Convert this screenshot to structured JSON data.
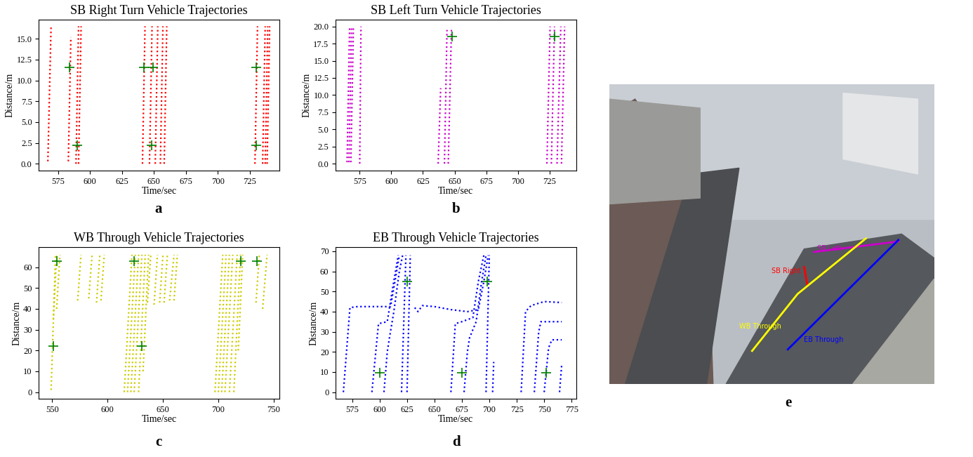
{
  "chart_data": [
    {
      "type": "line",
      "title": "SB Right Turn Vehicle Trajectories",
      "label": "a",
      "x_label": "Time/sec",
      "y_label": "Distance/m",
      "color": "red",
      "line_style": "dotted",
      "xlim": [
        560,
        748
      ],
      "xticks": [
        575,
        600,
        625,
        650,
        675,
        700,
        725
      ],
      "ylim": [
        -0.8,
        17.3
      ],
      "yticks": [
        {
          "value": 0,
          "label": "0.0"
        },
        2.5,
        {
          "value": 5,
          "label": "5.0"
        },
        7.5,
        {
          "value": 10,
          "label": "10.0"
        },
        12.5,
        {
          "value": 15,
          "label": "15.0"
        }
      ],
      "series": [
        {
          "x": [
            567,
            569.5
          ],
          "values": [
            0.3,
            16.5
          ]
        },
        {
          "x": [
            583,
            585
          ],
          "values": [
            0.3,
            15.2
          ]
        },
        {
          "x": [
            589,
            591
          ],
          "values": [
            0,
            16.5
          ]
        },
        {
          "x": [
            591,
            593
          ],
          "values": [
            0,
            16.5
          ]
        },
        {
          "x": [
            641,
            643
          ],
          "values": [
            0,
            16.5
          ]
        },
        {
          "x": [
            646.5,
            648.5
          ],
          "values": [
            0,
            16.5
          ]
        },
        {
          "x": [
            651,
            653
          ],
          "values": [
            0,
            16.5
          ]
        },
        {
          "x": [
            655,
            657
          ],
          "values": [
            0,
            16.5
          ]
        },
        {
          "x": [
            658,
            660
          ],
          "values": [
            0,
            16.5
          ]
        },
        {
          "x": [
            729,
            731
          ],
          "values": [
            0,
            16.5
          ]
        },
        {
          "x": [
            735,
            737
          ],
          "values": [
            0,
            16.5
          ]
        },
        {
          "x": [
            737,
            739
          ],
          "values": [
            0,
            16.5
          ]
        },
        {
          "x": [
            738.5,
            740.5
          ],
          "values": [
            0,
            16.5
          ]
        },
        {
          "type": "scatter",
          "marker": "plus",
          "color": "green",
          "x": [
            584,
            590,
            642,
            648,
            649,
            730,
            730
          ],
          "values": [
            11.6,
            2.2,
            11.6,
            2.2,
            11.6,
            11.6,
            2.2
          ]
        }
      ]
    },
    {
      "type": "line",
      "title": "SB Left Turn Vehicle Trajectories",
      "label": "b",
      "x_label": "Time/sec",
      "y_label": "Distance/m",
      "color": "#cc00cc",
      "line_style": "dotted",
      "xlim": [
        556,
        746
      ],
      "xticks": [
        575,
        600,
        625,
        650,
        675,
        700,
        725
      ],
      "ylim": [
        -1,
        21
      ],
      "yticks": [
        {
          "value": 0,
          "label": "0.0"
        },
        2.5,
        {
          "value": 5,
          "label": "5.0"
        },
        7.5,
        {
          "value": 10,
          "label": "10.0"
        },
        12.5,
        {
          "value": 15,
          "label": "15.0"
        },
        17.5,
        {
          "value": 20,
          "label": "20.0"
        }
      ],
      "series": [
        {
          "x": [
            565,
            567
          ],
          "values": [
            0.2,
            20
          ]
        },
        {
          "x": [
            566.5,
            568.5
          ],
          "values": [
            0.2,
            20
          ]
        },
        {
          "x": [
            568,
            570
          ],
          "values": [
            0.2,
            20
          ]
        },
        {
          "x": [
            575,
            576
          ],
          "values": [
            0,
            20
          ]
        },
        {
          "x": [
            637,
            639
          ],
          "values": [
            0,
            11
          ]
        },
        {
          "x": [
            642,
            644
          ],
          "values": [
            0,
            19.5
          ]
        },
        {
          "x": [
            645,
            647.5
          ],
          "values": [
            0,
            19.5
          ]
        },
        {
          "x": [
            723,
            725.5
          ],
          "values": [
            0,
            20
          ]
        },
        {
          "x": [
            726.5,
            729
          ],
          "values": [
            0,
            20
          ]
        },
        {
          "x": [
            731,
            734
          ],
          "values": [
            0,
            20
          ]
        },
        {
          "x": [
            734.5,
            737
          ],
          "values": [
            0,
            20
          ]
        },
        {
          "type": "scatter",
          "marker": "plus",
          "color": "green",
          "x": [
            648,
            729
          ],
          "values": [
            18.5,
            18.5
          ]
        }
      ]
    },
    {
      "type": "line",
      "title": "WB Through Vehicle Trajectories",
      "label": "c",
      "x_label": "Time/sec",
      "y_label": "Distance/m",
      "color": "#cccc00",
      "line_style": "dotted",
      "xlim": [
        538,
        755
      ],
      "xticks": [
        550,
        600,
        650,
        700,
        750
      ],
      "ylim": [
        -3.3,
        69.6
      ],
      "yticks": [
        0,
        10,
        20,
        30,
        40,
        50,
        60
      ],
      "series": [
        {
          "x": [
            549,
            553
          ],
          "values": [
            1,
            66
          ]
        },
        {
          "x": [
            551,
            554
          ],
          "values": [
            35,
            66
          ]
        },
        {
          "x": [
            554,
            557
          ],
          "values": [
            40,
            66
          ]
        },
        {
          "x": [
            573,
            576
          ],
          "values": [
            44,
            66
          ]
        },
        {
          "x": [
            583,
            586
          ],
          "values": [
            45,
            66
          ]
        },
        {
          "x": [
            590,
            593
          ],
          "values": [
            43,
            66
          ]
        },
        {
          "x": [
            594,
            597
          ],
          "values": [
            44,
            66
          ]
        },
        {
          "x": [
            615,
            622
          ],
          "values": [
            0,
            66
          ]
        },
        {
          "x": [
            618,
            625
          ],
          "values": [
            0,
            66
          ]
        },
        {
          "x": [
            621,
            628
          ],
          "values": [
            0,
            66
          ]
        },
        {
          "x": [
            624,
            631
          ],
          "values": [
            0,
            66
          ]
        },
        {
          "x": [
            628,
            634
          ],
          "values": [
            0,
            66
          ]
        },
        {
          "x": [
            632,
            637
          ],
          "values": [
            10,
            66
          ]
        },
        {
          "x": [
            636,
            639
          ],
          "values": [
            43,
            66
          ]
        },
        {
          "x": [
            642,
            645
          ],
          "values": [
            42,
            66
          ]
        },
        {
          "x": [
            647,
            650
          ],
          "values": [
            43,
            66
          ]
        },
        {
          "x": [
            651,
            654
          ],
          "values": [
            43,
            66
          ]
        },
        {
          "x": [
            656,
            660
          ],
          "values": [
            44,
            66
          ]
        },
        {
          "x": [
            660,
            663
          ],
          "values": [
            44,
            66
          ]
        },
        {
          "x": [
            697,
            704
          ],
          "values": [
            0,
            66
          ]
        },
        {
          "x": [
            700,
            707
          ],
          "values": [
            0,
            66
          ]
        },
        {
          "x": [
            703,
            710
          ],
          "values": [
            0,
            66
          ]
        },
        {
          "x": [
            706,
            713
          ],
          "values": [
            0,
            66
          ]
        },
        {
          "x": [
            710,
            717
          ],
          "values": [
            0,
            66
          ]
        },
        {
          "x": [
            714,
            720
          ],
          "values": [
            0,
            66
          ]
        },
        {
          "x": [
            718,
            722
          ],
          "values": [
            20,
            66
          ]
        },
        {
          "x": [
            734,
            737
          ],
          "values": [
            43,
            66
          ]
        },
        {
          "x": [
            740,
            744
          ],
          "values": [
            40,
            66
          ]
        },
        {
          "type": "scatter",
          "marker": "plus",
          "color": "green",
          "x": [
            551,
            554,
            624,
            631,
            720,
            735
          ],
          "values": [
            22,
            63,
            63,
            22,
            63,
            63
          ]
        }
      ]
    },
    {
      "type": "line",
      "title": "EB Through Vehicle Trajectories",
      "label": "d",
      "x_label": "Time/sec",
      "y_label": "Distance/m",
      "color": "blue",
      "line_style": "dotted",
      "xlim": [
        560,
        779
      ],
      "xticks": [
        575,
        600,
        625,
        650,
        675,
        700,
        725,
        750,
        775
      ],
      "ylim": [
        -3.4,
        72
      ],
      "yticks": [
        0,
        10,
        20,
        30,
        40,
        50,
        60,
        70
      ],
      "series": [
        {
          "x": [
            567,
            573,
            580,
            610,
            614,
            618
          ],
          "values": [
            0,
            42,
            42.5,
            42.5,
            55,
            68
          ]
        },
        {
          "x": [
            593,
            599,
            607,
            612,
            617
          ],
          "values": [
            0,
            34,
            35,
            52,
            68
          ]
        },
        {
          "x": [
            604,
            607,
            609,
            613,
            618,
            621
          ],
          "values": [
            0,
            20,
            27,
            40,
            60,
            68
          ]
        },
        {
          "x": [
            620,
            624
          ],
          "values": [
            0,
            68
          ]
        },
        {
          "x": [
            625,
            628
          ],
          "values": [
            0,
            68
          ]
        },
        {
          "x": [
            632,
            635,
            639,
            650,
            665,
            680,
            690,
            695,
            699
          ],
          "values": [
            42,
            40,
            43,
            42.5,
            41,
            40,
            41,
            55,
            68
          ]
        },
        {
          "x": [
            665,
            669,
            675,
            685,
            690,
            695
          ],
          "values": [
            0,
            34,
            35,
            37,
            55,
            68
          ]
        },
        {
          "x": [
            677,
            680,
            682,
            688,
            693,
            697
          ],
          "values": [
            0,
            20,
            27,
            35,
            55,
            68
          ]
        },
        {
          "x": [
            697,
            700
          ],
          "values": [
            0,
            68
          ]
        },
        {
          "x": [
            703,
            704
          ],
          "values": [
            0,
            15
          ]
        },
        {
          "x": [
            729,
            733,
            738,
            750,
            766
          ],
          "values": [
            0,
            40,
            43,
            45,
            44.5
          ]
        },
        {
          "x": [
            741,
            745,
            747,
            766
          ],
          "values": [
            0,
            30,
            35,
            35
          ]
        },
        {
          "x": [
            750,
            754,
            757,
            766
          ],
          "values": [
            0,
            22,
            26,
            26
          ]
        },
        {
          "x": [
            764,
            766
          ],
          "values": [
            0,
            14
          ]
        },
        {
          "type": "scatter",
          "marker": "plus",
          "color": "green",
          "x": [
            600,
            625,
            675,
            698,
            752
          ],
          "values": [
            9.5,
            55,
            9.5,
            55,
            9.5
          ]
        }
      ]
    }
  ],
  "image": {
    "label": "e",
    "annotations": [
      {
        "text": "SB Right",
        "color": "red"
      },
      {
        "text": "SB Left",
        "color": "#cc00cc"
      },
      {
        "text": "WB Through",
        "color": "yellow"
      },
      {
        "text": "EB Through",
        "color": "blue"
      }
    ]
  }
}
